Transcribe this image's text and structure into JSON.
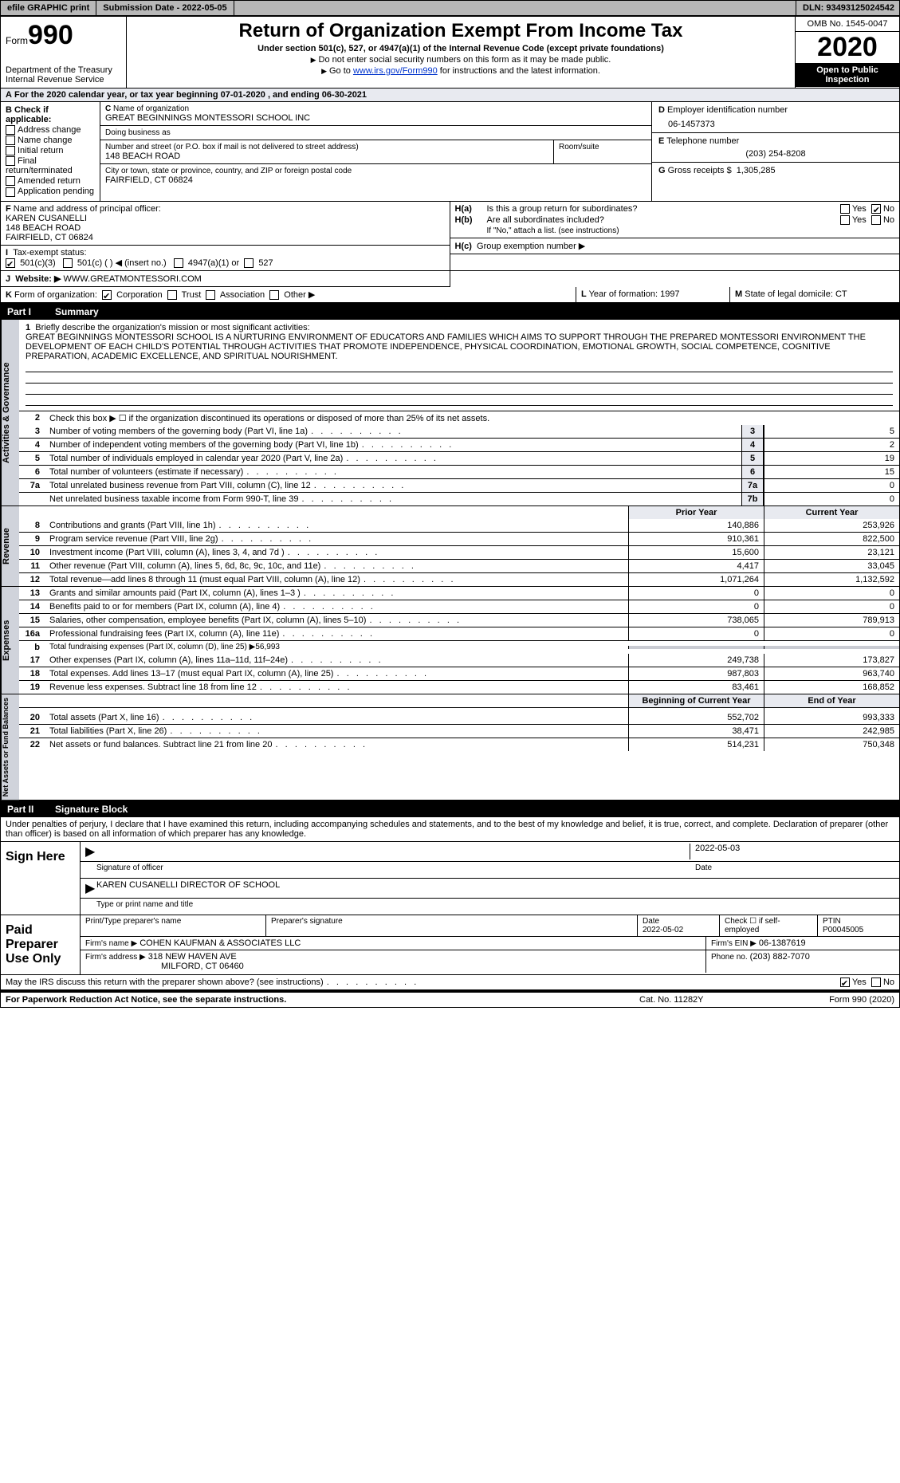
{
  "topbar": {
    "efile": "efile GRAPHIC print",
    "submission_label": "Submission Date - 2022-05-05",
    "dln_label": "DLN: 93493125024542"
  },
  "header": {
    "form_label": "Form",
    "form_number": "990",
    "dept": "Department of the Treasury",
    "irs": "Internal Revenue Service",
    "title": "Return of Organization Exempt From Income Tax",
    "subtitle": "Under section 501(c), 527, or 4947(a)(1) of the Internal Revenue Code (except private foundations)",
    "note1": "Do not enter social security numbers on this form as it may be made public.",
    "note2_pre": "Go to ",
    "note2_link": "www.irs.gov/Form990",
    "note2_post": " for instructions and the latest information.",
    "omb": "OMB No. 1545-0047",
    "year": "2020",
    "open": "Open to Public Inspection"
  },
  "lineA": "For the 2020 calendar year, or tax year beginning 07-01-2020   , and ending 06-30-2021",
  "B": {
    "label": "Check if applicable:",
    "opts": [
      "Address change",
      "Name change",
      "Initial return",
      "Final return/terminated",
      "Amended return",
      "Application pending"
    ]
  },
  "C": {
    "name_label": "Name of organization",
    "name": "GREAT BEGINNINGS MONTESSORI SCHOOL INC",
    "dba_label": "Doing business as",
    "dba": "",
    "street_label": "Number and street (or P.O. box if mail is not delivered to street address)",
    "street": "148 BEACH ROAD",
    "room_label": "Room/suite",
    "city_label": "City or town, state or province, country, and ZIP or foreign postal code",
    "city": "FAIRFIELD, CT  06824"
  },
  "D": {
    "label": "Employer identification number",
    "value": "06-1457373"
  },
  "E": {
    "label": "Telephone number",
    "value": "(203) 254-8208"
  },
  "G": {
    "label": "Gross receipts $",
    "value": "1,305,285"
  },
  "F": {
    "label": "Name and address of principal officer:",
    "name": "KAREN CUSANELLI",
    "street": "148 BEACH ROAD",
    "city": "FAIRFIELD, CT  06824"
  },
  "H": {
    "a": "Is this a group return for subordinates?",
    "a_yes": "Yes",
    "a_no": "No",
    "b": "Are all subordinates included?",
    "b_note": "If \"No,\" attach a list. (see instructions)",
    "c": "Group exemption number ▶"
  },
  "I": {
    "label": "Tax-exempt status:",
    "o1": "501(c)(3)",
    "o2": "501(c) (  ) ◀ (insert no.)",
    "o3": "4947(a)(1) or",
    "o4": "527"
  },
  "J": {
    "label": "Website: ▶",
    "value": "WWW.GREATMONTESSORI.COM"
  },
  "K": {
    "label": "Form of organization:",
    "opts": [
      "Corporation",
      "Trust",
      "Association",
      "Other ▶"
    ]
  },
  "L": {
    "label": "Year of formation:",
    "value": "1997"
  },
  "M": {
    "label": "State of legal domicile:",
    "value": "CT"
  },
  "partI": {
    "title": "Part I",
    "name": "Summary",
    "mission_label": "Briefly describe the organization's mission or most significant activities:",
    "mission": "GREAT BEGINNINGS MONTESSORI SCHOOL IS A NURTURING ENVIRONMENT OF EDUCATORS AND FAMILIES WHICH AIMS TO SUPPORT THROUGH THE PREPARED MONTESSORI ENVIRONMENT THE DEVELOPMENT OF EACH CHILD'S POTENTIAL THROUGH ACTIVITIES THAT PROMOTE INDEPENDENCE, PHYSICAL COORDINATION, EMOTIONAL GROWTH, SOCIAL COMPETENCE, COGNITIVE PREPARATION, ACADEMIC EXCELLENCE, AND SPIRITUAL NOURISHMENT.",
    "line2": "Check this box ▶ ☐  if the organization discontinued its operations or disposed of more than 25% of its net assets."
  },
  "sections": {
    "governance": "Activities & Governance",
    "revenue": "Revenue",
    "expenses": "Expenses",
    "netassets": "Net Assets or Fund Balances"
  },
  "govrows": [
    {
      "n": "3",
      "t": "Number of voting members of the governing body (Part VI, line 1a)",
      "lab": "3",
      "v": "5"
    },
    {
      "n": "4",
      "t": "Number of independent voting members of the governing body (Part VI, line 1b)",
      "lab": "4",
      "v": "2"
    },
    {
      "n": "5",
      "t": "Total number of individuals employed in calendar year 2020 (Part V, line 2a)",
      "lab": "5",
      "v": "19"
    },
    {
      "n": "6",
      "t": "Total number of volunteers (estimate if necessary)",
      "lab": "6",
      "v": "15"
    },
    {
      "n": "7a",
      "t": "Total unrelated business revenue from Part VIII, column (C), line 12",
      "lab": "7a",
      "v": "0"
    },
    {
      "n": "",
      "t": "Net unrelated business taxable income from Form 990-T, line 39",
      "lab": "7b",
      "v": "0"
    }
  ],
  "colheads": {
    "prior": "Prior Year",
    "current": "Current Year",
    "boy": "Beginning of Current Year",
    "eoy": "End of Year"
  },
  "revrows": [
    {
      "n": "8",
      "t": "Contributions and grants (Part VIII, line 1h)",
      "p": "140,886",
      "c": "253,926"
    },
    {
      "n": "9",
      "t": "Program service revenue (Part VIII, line 2g)",
      "p": "910,361",
      "c": "822,500"
    },
    {
      "n": "10",
      "t": "Investment income (Part VIII, column (A), lines 3, 4, and 7d )",
      "p": "15,600",
      "c": "23,121"
    },
    {
      "n": "11",
      "t": "Other revenue (Part VIII, column (A), lines 5, 6d, 8c, 9c, 10c, and 11e)",
      "p": "4,417",
      "c": "33,045"
    },
    {
      "n": "12",
      "t": "Total revenue—add lines 8 through 11 (must equal Part VIII, column (A), line 12)",
      "p": "1,071,264",
      "c": "1,132,592"
    }
  ],
  "exprows": [
    {
      "n": "13",
      "t": "Grants and similar amounts paid (Part IX, column (A), lines 1–3 )",
      "p": "0",
      "c": "0"
    },
    {
      "n": "14",
      "t": "Benefits paid to or for members (Part IX, column (A), line 4)",
      "p": "0",
      "c": "0"
    },
    {
      "n": "15",
      "t": "Salaries, other compensation, employee benefits (Part IX, column (A), lines 5–10)",
      "p": "738,065",
      "c": "789,913"
    },
    {
      "n": "16a",
      "t": "Professional fundraising fees (Part IX, column (A), line 11e)",
      "p": "0",
      "c": "0"
    }
  ],
  "exp16b": {
    "n": "b",
    "t": "Total fundraising expenses (Part IX, column (D), line 25) ▶56,993"
  },
  "exprows2": [
    {
      "n": "17",
      "t": "Other expenses (Part IX, column (A), lines 11a–11d, 11f–24e)",
      "p": "249,738",
      "c": "173,827"
    },
    {
      "n": "18",
      "t": "Total expenses. Add lines 13–17 (must equal Part IX, column (A), line 25)",
      "p": "987,803",
      "c": "963,740"
    },
    {
      "n": "19",
      "t": "Revenue less expenses. Subtract line 18 from line 12",
      "p": "83,461",
      "c": "168,852"
    }
  ],
  "narows": [
    {
      "n": "20",
      "t": "Total assets (Part X, line 16)",
      "p": "552,702",
      "c": "993,333"
    },
    {
      "n": "21",
      "t": "Total liabilities (Part X, line 26)",
      "p": "38,471",
      "c": "242,985"
    },
    {
      "n": "22",
      "t": "Net assets or fund balances. Subtract line 21 from line 20",
      "p": "514,231",
      "c": "750,348"
    }
  ],
  "partII": {
    "title": "Part II",
    "name": "Signature Block"
  },
  "perjury": "Under penalties of perjury, I declare that I have examined this return, including accompanying schedules and statements, and to the best of my knowledge and belief, it is true, correct, and complete. Declaration of preparer (other than officer) is based on all information of which preparer has any knowledge.",
  "sign": {
    "label": "Sign Here",
    "date": "2022-05-03",
    "sig_label": "Signature of officer",
    "date_label": "Date",
    "name": "KAREN CUSANELLI  DIRECTOR OF SCHOOL",
    "name_label": "Type or print name and title"
  },
  "prep": {
    "label": "Paid Preparer Use Only",
    "h1": "Print/Type preparer's name",
    "h2": "Preparer's signature",
    "h3": "Date",
    "date": "2022-05-02",
    "h4": "Check ☐ if self-employed",
    "h5": "PTIN",
    "ptin": "P00045005",
    "firm_label": "Firm's name    ▶",
    "firm": "COHEN KAUFMAN & ASSOCIATES LLC",
    "ein_label": "Firm's EIN ▶",
    "ein": "06-1387619",
    "addr_label": "Firm's address ▶",
    "addr1": "318 NEW HAVEN AVE",
    "addr2": "MILFORD, CT  06460",
    "phone_label": "Phone no.",
    "phone": "(203) 882-7070"
  },
  "discuss": {
    "q": "May the IRS discuss this return with the preparer shown above? (see instructions)",
    "yes": "Yes",
    "no": "No"
  },
  "footer": {
    "left": "For Paperwork Reduction Act Notice, see the separate instructions.",
    "mid": "Cat. No. 11282Y",
    "right": "Form 990 (2020)"
  }
}
